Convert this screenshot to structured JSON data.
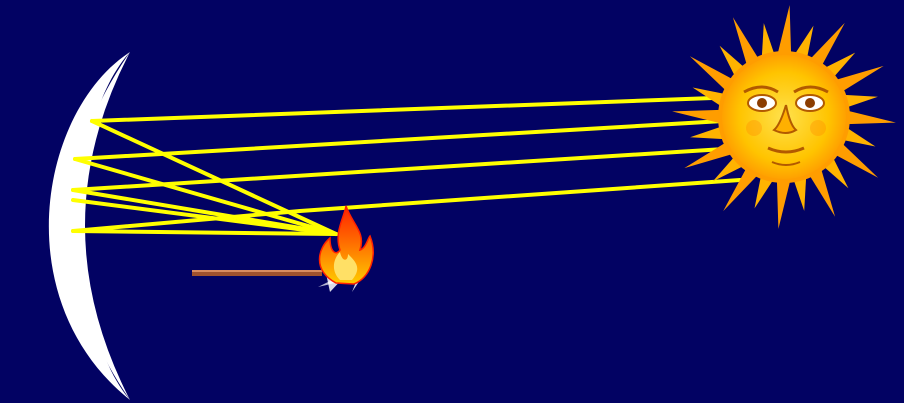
{
  "colors": {
    "background": "#020263",
    "mirror": "#ffffff",
    "ray": "#ffff00",
    "sun_outer": "#ff9d00",
    "sun_inner": "#ffc400",
    "sun_face": "#ffcf1a",
    "face_line": "#b25a00",
    "flame_outer": "#ff3300",
    "flame_inner": "#ffcc00",
    "stick": "#a0522d"
  },
  "icons": {
    "mirror": "concave-mirror-icon",
    "sun": "sun-with-face-icon",
    "flame": "flame-icon",
    "match": "matchstick-icon"
  }
}
